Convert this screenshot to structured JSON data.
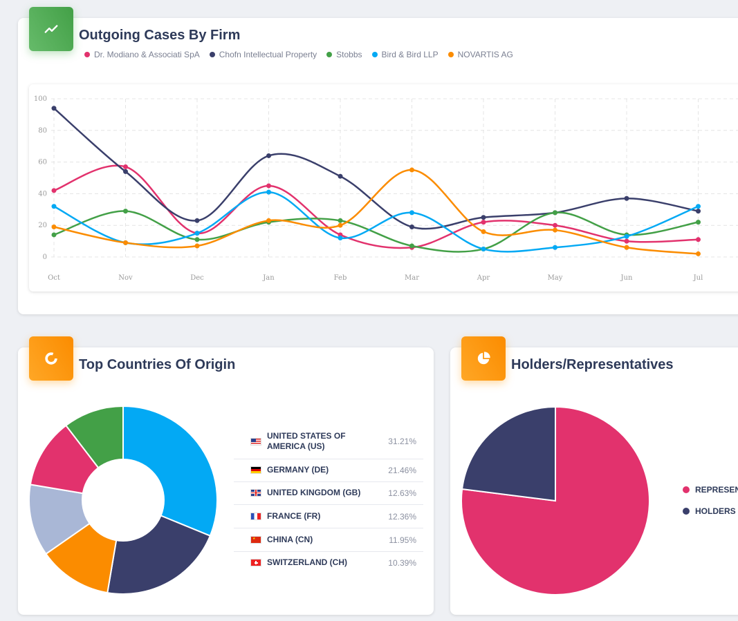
{
  "outgoing": {
    "title": "Outgoing Cases By Firm",
    "icon": "trend-line-icon"
  },
  "countries": {
    "title": "Top Countries Of Origin",
    "icon": "donut-chart-icon",
    "items": [
      {
        "name": "UNITED STATES OF AMERICA (US)",
        "pct": "31.21%",
        "flag": "flag-us-icon"
      },
      {
        "name": "GERMANY (DE)",
        "pct": "21.46%",
        "flag": "flag-de-icon"
      },
      {
        "name": "UNITED KINGDOM (GB)",
        "pct": "12.63%",
        "flag": "flag-gb-icon"
      },
      {
        "name": "FRANCE (FR)",
        "pct": "12.36%",
        "flag": "flag-fr-icon"
      },
      {
        "name": "CHINA (CN)",
        "pct": "11.95%",
        "flag": "flag-cn-icon"
      },
      {
        "name": "SWITZERLAND (CH)",
        "pct": "10.39%",
        "flag": "flag-ch-icon"
      }
    ]
  },
  "holders": {
    "title": "Holders/Representatives",
    "icon": "pie-chart-icon",
    "legend": [
      "REPRESENT",
      "HOLDERS"
    ]
  },
  "chart_data": [
    {
      "type": "line",
      "title": "Outgoing Cases By Firm",
      "x": [
        "Oct",
        "Nov",
        "Dec",
        "Jan",
        "Feb",
        "Mar",
        "Apr",
        "May",
        "Jun",
        "Jul"
      ],
      "ylim": [
        0,
        100
      ],
      "yticks": [
        0,
        20,
        40,
        60,
        80,
        100
      ],
      "grid": true,
      "legend_position": "top-left",
      "series": [
        {
          "name": "Dr. Modiano & Associati SpA",
          "color": "#e2326d",
          "values": [
            42,
            57,
            15,
            45,
            14,
            6,
            22,
            20,
            10,
            11
          ]
        },
        {
          "name": "Chofn Intellectual Property",
          "color": "#3a3f6b",
          "values": [
            94,
            54,
            23,
            64,
            51,
            19,
            25,
            28,
            37,
            29
          ]
        },
        {
          "name": "Stobbs",
          "color": "#43a047",
          "values": [
            14,
            29,
            11,
            22,
            23,
            7,
            5,
            28,
            14,
            22
          ]
        },
        {
          "name": "Bird & Bird LLP",
          "color": "#03a9f4",
          "values": [
            32,
            9,
            15,
            41,
            12,
            28,
            5,
            6,
            13,
            32
          ]
        },
        {
          "name": "NOVARTIS AG",
          "color": "#fb8c00",
          "values": [
            19,
            9,
            7,
            23,
            20,
            55,
            16,
            17,
            6,
            2
          ]
        }
      ]
    },
    {
      "type": "pie",
      "title": "Top Countries Of Origin",
      "donut": true,
      "slices": [
        {
          "label": "UNITED STATES OF AMERICA (US)",
          "value": 31.21,
          "color": "#03a9f4"
        },
        {
          "label": "GERMANY (DE)",
          "value": 21.46,
          "color": "#3a3f6b"
        },
        {
          "label": "UNITED KINGDOM (GB)",
          "value": 12.63,
          "color": "#fb8c00"
        },
        {
          "label": "FRANCE (FR)",
          "value": 12.36,
          "color": "#a9b7d6"
        },
        {
          "label": "CHINA (CN)",
          "value": 11.95,
          "color": "#e2326d"
        },
        {
          "label": "SWITZERLAND (CH)",
          "value": 10.39,
          "color": "#43a047"
        }
      ]
    },
    {
      "type": "pie",
      "title": "Holders/Representatives",
      "slices": [
        {
          "label": "REPRESENT",
          "value": 77,
          "color": "#e2326d"
        },
        {
          "label": "HOLDERS",
          "value": 23,
          "color": "#3a3f6b"
        }
      ]
    }
  ]
}
